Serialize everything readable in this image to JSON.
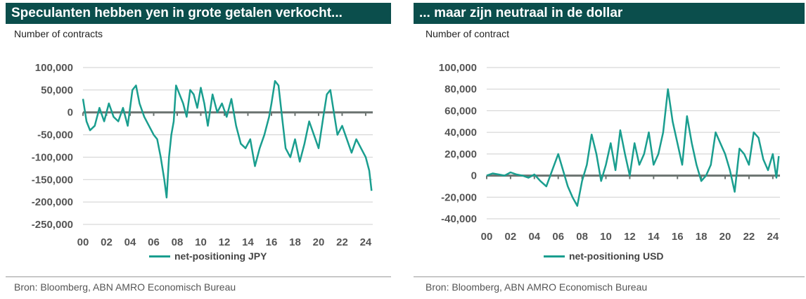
{
  "left": {
    "title": "Speculanten hebben yen in grote getalen verkocht...",
    "units_label": "Number of contracts",
    "source": "Bron: Bloomberg, ABN AMRO Economisch Bureau",
    "line_color": "#1a9e8f",
    "chart_data": {
      "type": "line",
      "title": "Speculanten hebben yen in grote getalen verkocht...",
      "ylabel": "Number of contracts",
      "ylim": [
        -250000,
        100000
      ],
      "y_ticks": [
        100000,
        50000,
        0,
        -50000,
        -100000,
        -150000,
        -200000,
        -250000
      ],
      "y_tick_labels": [
        "100,000",
        "50,000",
        "0",
        "-50,000",
        "-100,000",
        "-150,000",
        "-200,000",
        "-250,000"
      ],
      "xlim": [
        2000,
        2024.6
      ],
      "x_ticks": [
        2000,
        2002,
        2004,
        2006,
        2008,
        2010,
        2012,
        2014,
        2016,
        2018,
        2020,
        2022,
        2024
      ],
      "x_tick_labels": [
        "00",
        "02",
        "04",
        "06",
        "08",
        "10",
        "12",
        "14",
        "16",
        "18",
        "20",
        "22",
        "24"
      ],
      "grid": true,
      "legend": "bottom",
      "series": [
        {
          "name": "net-positioning JPY",
          "x": [
            2000.0,
            2000.3,
            2000.6,
            2001.0,
            2001.4,
            2001.8,
            2002.2,
            2002.6,
            2003.0,
            2003.4,
            2003.8,
            2004.2,
            2004.5,
            2004.8,
            2005.2,
            2005.6,
            2006.0,
            2006.3,
            2006.6,
            2006.9,
            2007.1,
            2007.3,
            2007.5,
            2007.7,
            2007.9,
            2008.2,
            2008.5,
            2008.8,
            2009.1,
            2009.4,
            2009.7,
            2010.0,
            2010.3,
            2010.6,
            2011.0,
            2011.4,
            2011.8,
            2012.2,
            2012.6,
            2013.0,
            2013.4,
            2013.8,
            2014.2,
            2014.6,
            2015.0,
            2015.4,
            2015.8,
            2016.0,
            2016.3,
            2016.6,
            2016.9,
            2017.2,
            2017.6,
            2018.0,
            2018.4,
            2018.8,
            2019.2,
            2019.6,
            2020.0,
            2020.4,
            2020.7,
            2021.0,
            2021.3,
            2021.6,
            2022.0,
            2022.4,
            2022.8,
            2023.2,
            2023.6,
            2024.0,
            2024.3,
            2024.5
          ],
          "values": [
            30000,
            -20000,
            -40000,
            -30000,
            10000,
            -20000,
            20000,
            -10000,
            -20000,
            10000,
            -30000,
            50000,
            60000,
            20000,
            -10000,
            -30000,
            -50000,
            -60000,
            -100000,
            -150000,
            -190000,
            -100000,
            -50000,
            -20000,
            60000,
            40000,
            20000,
            -10000,
            50000,
            40000,
            10000,
            55000,
            20000,
            -30000,
            40000,
            0,
            20000,
            -10000,
            30000,
            -30000,
            -70000,
            -80000,
            -60000,
            -120000,
            -80000,
            -50000,
            -10000,
            20000,
            70000,
            60000,
            -10000,
            -80000,
            -100000,
            -60000,
            -110000,
            -70000,
            -20000,
            -50000,
            -80000,
            -10000,
            40000,
            50000,
            0,
            -50000,
            -30000,
            -60000,
            -90000,
            -60000,
            -80000,
            -100000,
            -130000,
            -175000
          ]
        }
      ]
    }
  },
  "right": {
    "title": "... maar zijn neutraal in de dollar",
    "units_label": "Number of contract",
    "source": "Bron: Bloomberg, ABN AMRO Economisch Bureau",
    "line_color": "#1a9e8f",
    "chart_data": {
      "type": "line",
      "title": "... maar zijn neutraal in de dollar",
      "ylabel": "Number of contract",
      "ylim": [
        -40000,
        100000
      ],
      "y_ticks": [
        100000,
        80000,
        60000,
        40000,
        20000,
        0,
        -20000,
        -40000
      ],
      "y_tick_labels": [
        "100,000",
        "80,000",
        "60,000",
        "40,000",
        "20,000",
        "0",
        "-20,000",
        "-40,000"
      ],
      "xlim": [
        2000,
        2024.6
      ],
      "x_ticks": [
        2000,
        2002,
        2004,
        2006,
        2008,
        2010,
        2012,
        2014,
        2016,
        2018,
        2020,
        2022,
        2024
      ],
      "x_tick_labels": [
        "00",
        "02",
        "04",
        "06",
        "08",
        "10",
        "12",
        "14",
        "16",
        "18",
        "20",
        "22",
        "24"
      ],
      "grid": true,
      "legend": "bottom",
      "series": [
        {
          "name": "net-positioning USD",
          "x": [
            2000.0,
            2000.5,
            2001.0,
            2001.5,
            2002.0,
            2002.5,
            2003.0,
            2003.5,
            2004.0,
            2004.5,
            2005.0,
            2005.5,
            2006.0,
            2006.4,
            2006.8,
            2007.2,
            2007.6,
            2008.0,
            2008.4,
            2008.8,
            2009.2,
            2009.6,
            2010.0,
            2010.4,
            2010.8,
            2011.2,
            2011.6,
            2012.0,
            2012.4,
            2012.8,
            2013.2,
            2013.6,
            2014.0,
            2014.4,
            2014.8,
            2015.2,
            2015.6,
            2016.0,
            2016.4,
            2016.8,
            2017.2,
            2017.6,
            2018.0,
            2018.4,
            2018.8,
            2019.2,
            2019.6,
            2020.0,
            2020.4,
            2020.8,
            2021.2,
            2021.6,
            2022.0,
            2022.4,
            2022.8,
            2023.2,
            2023.6,
            2024.0,
            2024.3,
            2024.5
          ],
          "values": [
            0,
            2000,
            1000,
            0,
            3000,
            1000,
            0,
            -2000,
            1000,
            -5000,
            -10000,
            5000,
            20000,
            5000,
            -10000,
            -20000,
            -28000,
            -5000,
            10000,
            38000,
            20000,
            -5000,
            10000,
            30000,
            5000,
            42000,
            20000,
            0,
            30000,
            10000,
            20000,
            40000,
            10000,
            20000,
            40000,
            80000,
            50000,
            30000,
            10000,
            55000,
            30000,
            10000,
            -5000,
            0,
            10000,
            40000,
            30000,
            20000,
            5000,
            -15000,
            25000,
            20000,
            10000,
            40000,
            35000,
            15000,
            5000,
            20000,
            -2000,
            18000
          ]
        }
      ]
    }
  }
}
